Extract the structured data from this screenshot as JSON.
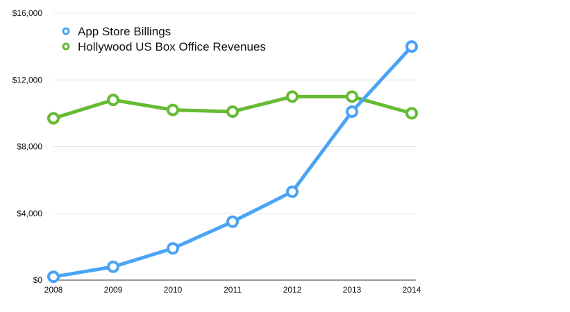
{
  "chart_data": {
    "type": "line",
    "title": "",
    "xlabel": "",
    "ylabel": "",
    "categories": [
      "2008",
      "2009",
      "2010",
      "2011",
      "2012",
      "2013",
      "2014"
    ],
    "ylim": [
      0,
      16000
    ],
    "yticks": [
      0,
      4000,
      8000,
      12000,
      16000
    ],
    "ytick_labels": [
      "$0",
      "$4,000",
      "$8,000",
      "$12,000",
      "$16,000"
    ],
    "grid": true,
    "legend_position": "top-left",
    "series": [
      {
        "name": "App Store Billings",
        "color": "#4aa3f5",
        "values": [
          200,
          800,
          1900,
          3500,
          5300,
          10100,
          14000
        ]
      },
      {
        "name": "Hollywood US Box Office Revenues",
        "color": "#66bb33",
        "values": [
          9700,
          10800,
          10200,
          10100,
          11000,
          11000,
          10000
        ]
      }
    ]
  }
}
